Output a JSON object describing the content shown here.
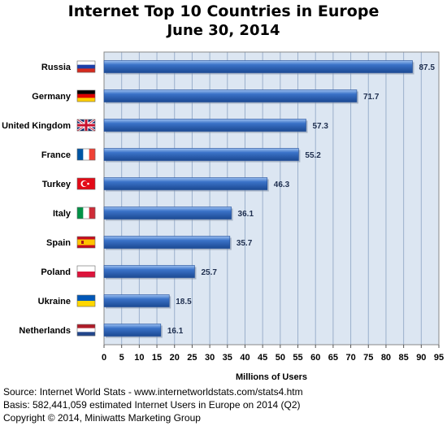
{
  "chart_data": {
    "type": "bar",
    "orientation": "horizontal",
    "title": "Internet Top 10 Countries in Europe",
    "subtitle": "June 30, 2014",
    "xlabel": "Millions of Users",
    "ylabel": "",
    "xlim": [
      0,
      95
    ],
    "xticks": [
      0,
      5,
      10,
      15,
      20,
      25,
      30,
      35,
      40,
      45,
      50,
      55,
      60,
      65,
      70,
      75,
      80,
      85,
      90,
      95
    ],
    "grid": true,
    "categories": [
      "Russia",
      "Germany",
      "United Kingdom",
      "France",
      "Turkey",
      "Italy",
      "Spain",
      "Poland",
      "Ukraine",
      "Netherlands"
    ],
    "values": [
      87.5,
      71.7,
      57.3,
      55.2,
      46.3,
      36.1,
      35.7,
      25.7,
      18.5,
      16.1
    ],
    "data_labels": [
      "87.5",
      "71.7",
      "57.3",
      "55.2",
      "46.3",
      "36.1",
      "35.7",
      "25.7",
      "18.5",
      "16.1"
    ],
    "flags": [
      "russia-flag-icon",
      "germany-flag-icon",
      "uk-flag-icon",
      "france-flag-icon",
      "turkey-flag-icon",
      "italy-flag-icon",
      "spain-flag-icon",
      "poland-flag-icon",
      "ukraine-flag-icon",
      "netherlands-flag-icon"
    ],
    "colors": {
      "bar": "#2f64b5",
      "plot_background": "#dce6f2",
      "grid": "#9bb0cc"
    }
  },
  "footer": {
    "source": "Source: Internet World Stats  -  www.internetworldstats.com/stats4.htm",
    "basis": "Basis: 582,441,059 estimated Internet  Users in Europe on 2014 (Q2)",
    "copyright": "Copyright © 2014, Miniwatts Marketing Group"
  }
}
